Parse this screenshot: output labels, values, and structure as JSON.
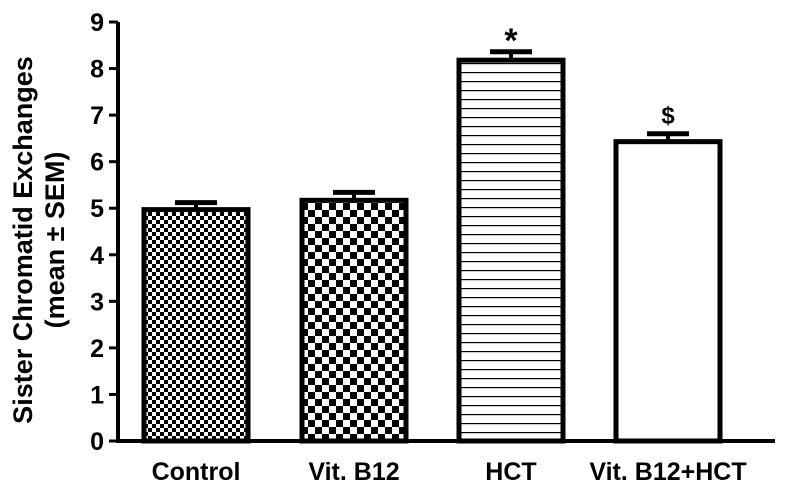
{
  "chart_data": {
    "type": "bar",
    "title": "",
    "xlabel": "",
    "ylabel_lines": [
      "Sister Chromatid Exchanges",
      "(mean ± SEM)"
    ],
    "ylim": [
      0,
      9
    ],
    "yticks": [
      0,
      1,
      2,
      3,
      4,
      5,
      6,
      7,
      8,
      9
    ],
    "grid": false,
    "legend": "none",
    "categories": [
      "Control",
      "Vit. B12",
      "HCT",
      "Vit. B12+HCT"
    ],
    "values": [
      4.97,
      5.17,
      8.18,
      6.43
    ],
    "errors": [
      0.15,
      0.17,
      0.18,
      0.17
    ],
    "annotations": [
      "",
      "",
      "*",
      "$"
    ],
    "patterns": [
      "fine-checker",
      "coarse-checker",
      "horizontal-lines",
      "solid-white"
    ],
    "colors": {
      "ink": "#000000",
      "fill": "#ffffff"
    }
  }
}
